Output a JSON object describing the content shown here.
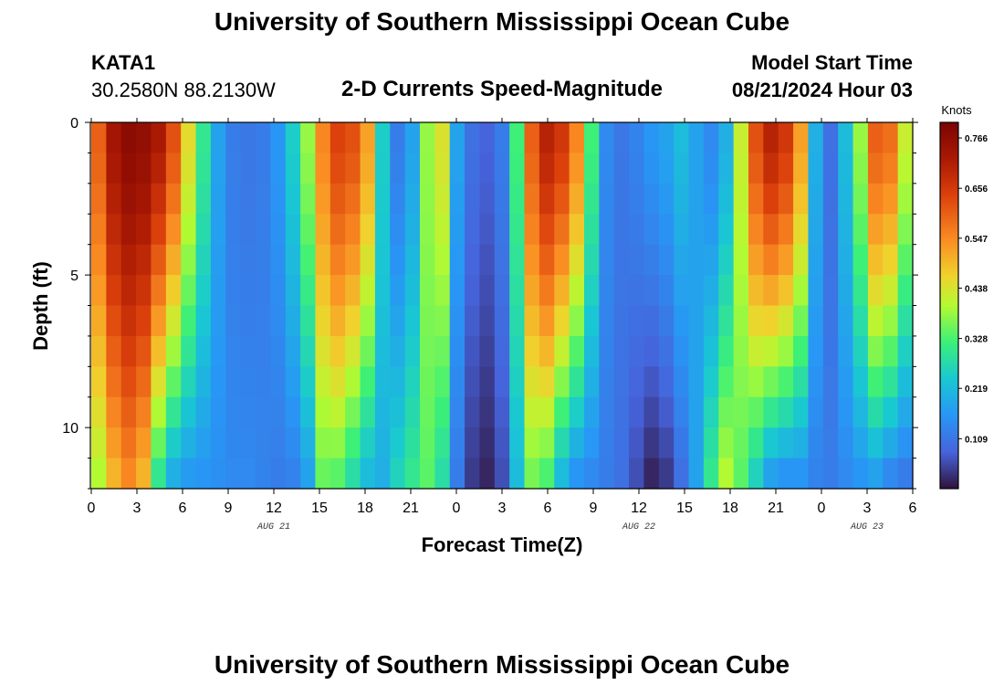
{
  "header": {
    "title": "University of Southern Mississippi Ocean Cube",
    "station_id": "KATA1",
    "location": "30.2580N  88.2130W",
    "model_start_label": "Model Start Time",
    "model_start_value": "08/21/2024 Hour 03",
    "bottom_title": "University of Southern Mississippi Ocean Cube"
  },
  "chart_data": {
    "type": "heatmap",
    "title": "2-D Currents Speed-Magnitude",
    "xlabel": "Forecast Time(Z)",
    "ylabel": "Depth (ft)",
    "x_hours": [
      0,
      3,
      6,
      9,
      12,
      15,
      18,
      21,
      24,
      27,
      30,
      33,
      36,
      39,
      42,
      45,
      48,
      51,
      54
    ],
    "x_tick_labels": [
      "0",
      "3",
      "6",
      "9",
      "12",
      "15",
      "18",
      "21",
      "0",
      "3",
      "6",
      "9",
      "12",
      "15",
      "18",
      "21",
      "0",
      "3",
      "6"
    ],
    "date_labels": [
      {
        "text": "AUG 21",
        "hour": 12
      },
      {
        "text": "AUG 22",
        "hour": 36
      },
      {
        "text": "AUG 23",
        "hour": 51
      }
    ],
    "y_ticks": [
      0,
      5,
      10
    ],
    "y_tick_labels": [
      "0",
      "5",
      "10"
    ],
    "ylim": [
      0,
      12
    ],
    "xlim": [
      0,
      54
    ],
    "colorbar": {
      "unit": "Knots",
      "min": 0.0,
      "max": 0.8,
      "tick_values": [
        0.766,
        0.656,
        0.547,
        0.438,
        0.328,
        0.219,
        0.109
      ],
      "tick_labels": [
        "0.766",
        "0.656",
        "0.547",
        "0.438",
        "0.328",
        "0.219",
        "0.109"
      ]
    },
    "surface_speed_by_hour": [
      0.6,
      0.73,
      0.77,
      0.76,
      0.72,
      0.62,
      0.45,
      0.3,
      0.18,
      0.12,
      0.11,
      0.12,
      0.16,
      0.25,
      0.38,
      0.55,
      0.64,
      0.62,
      0.52,
      0.25,
      0.12,
      0.18,
      0.38,
      0.44,
      0.18,
      0.1,
      0.08,
      0.12,
      0.32,
      0.6,
      0.7,
      0.66,
      0.55,
      0.32,
      0.14,
      0.11,
      0.13,
      0.16,
      0.18,
      0.22,
      0.18,
      0.14,
      0.2,
      0.42,
      0.62,
      0.7,
      0.66,
      0.52,
      0.2,
      0.1,
      0.22,
      0.38,
      0.6,
      0.58,
      0.42
    ],
    "bottom_speed_by_hour": [
      0.4,
      0.5,
      0.55,
      0.5,
      0.3,
      0.2,
      0.17,
      0.16,
      0.15,
      0.14,
      0.14,
      0.13,
      0.12,
      0.13,
      0.18,
      0.35,
      0.34,
      0.28,
      0.22,
      0.2,
      0.26,
      0.3,
      0.34,
      0.28,
      0.12,
      0.04,
      0.02,
      0.06,
      0.22,
      0.36,
      0.33,
      0.22,
      0.16,
      0.14,
      0.12,
      0.1,
      0.06,
      0.02,
      0.04,
      0.1,
      0.18,
      0.3,
      0.4,
      0.34,
      0.26,
      0.18,
      0.16,
      0.16,
      0.13,
      0.12,
      0.14,
      0.16,
      0.18,
      0.14,
      0.12
    ]
  }
}
